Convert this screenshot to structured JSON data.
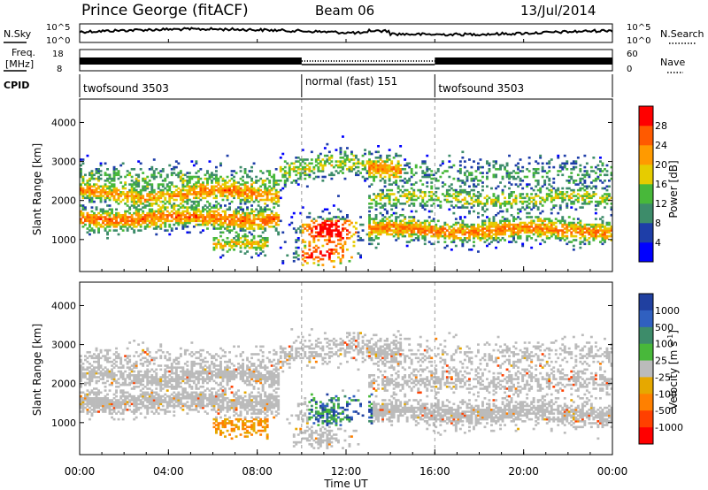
{
  "header": {
    "station": "Prince George (fitACF)",
    "beam": "Beam 06",
    "date": "13/Jul/2014"
  },
  "chart_data": [
    {
      "type": "line",
      "panel": "noise",
      "left_label": "N.Sky",
      "right_label": "N.Search",
      "left_ticks": [
        "10^5",
        "10^0"
      ],
      "right_ticks": [
        "10^5",
        "10^0"
      ]
    },
    {
      "type": "line",
      "panel": "frequency",
      "left_label_1": "Freq.",
      "left_label_2": "[MHz]",
      "right_label": "Nave",
      "left_ticks": [
        "18",
        "8"
      ],
      "right_ticks": [
        "60",
        "0"
      ]
    },
    {
      "type": "table",
      "panel": "cpid",
      "label": "CPID",
      "segments": [
        {
          "start": 0,
          "end": 10,
          "name": "twofsound 3503"
        },
        {
          "start": 10,
          "end": 16,
          "name": "normal (fast) 151"
        },
        {
          "start": 16,
          "end": 24,
          "name": "twofsound 3503"
        }
      ]
    },
    {
      "type": "heatmap",
      "panel": "power",
      "ylabel": "Slant Range [km]",
      "ylim": [
        180,
        4600
      ],
      "yticks": [
        1000,
        2000,
        3000,
        4000
      ],
      "colorbar_label": "Power [dB]",
      "colorbar_ticks": [
        "4",
        "8",
        "12",
        "16",
        "20",
        "24",
        "28"
      ],
      "colorbar_range": [
        0,
        32
      ],
      "colors": [
        "#0000ff",
        "#1e3ea8",
        "#3d8c6a",
        "#48b83a",
        "#e6cc00",
        "#ff9a00",
        "#ff5a00",
        "#ff0000"
      ]
    },
    {
      "type": "heatmap",
      "panel": "velocity",
      "ylabel": "Slant Range [km]",
      "ylim": [
        180,
        4600
      ],
      "yticks": [
        1000,
        2000,
        3000,
        4000
      ],
      "colorbar_label": "Velocity [m s",
      "colorbar_label_sup": "-1",
      "colorbar_label_end": "]",
      "colorbar_ticks": [
        "1000",
        "500",
        "100",
        "25",
        "-25",
        "-100",
        "-500",
        "-1000"
      ],
      "colors": [
        "#2040a0",
        "#3060c0",
        "#3d8c6a",
        "#48b83a",
        "#bbbbbb",
        "#e6a800",
        "#ff8000",
        "#ff4000",
        "#ff0000"
      ]
    }
  ],
  "xaxis": {
    "label": "Time UT",
    "range": [
      0,
      24
    ],
    "ticks": [
      "00:00",
      "04:00",
      "08:00",
      "12:00",
      "16:00",
      "20:00",
      "00:00"
    ]
  }
}
